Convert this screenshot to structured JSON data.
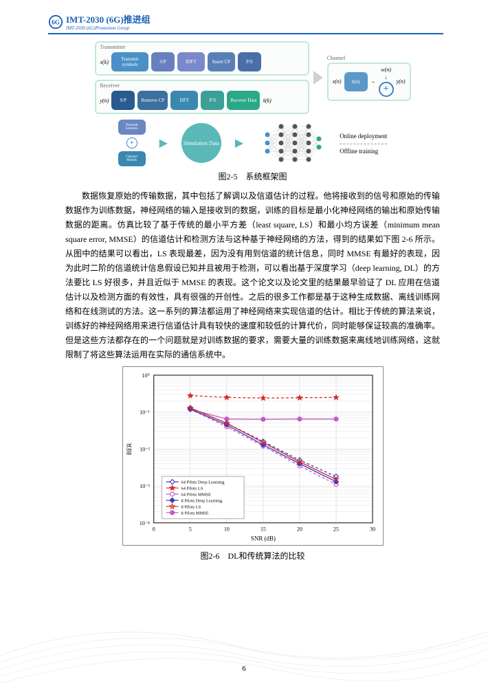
{
  "header": {
    "title_cn": "IMT-2030 (6G)推进组",
    "title_en": "IMT-2030 (6G)Promotion Group"
  },
  "diagram": {
    "transmitter_label": "Transmitter",
    "receiver_label": "Receiver",
    "channel_label": "Channel",
    "xk_in": "x(k)",
    "xn_out": "x(n)",
    "yn_in": "y(n)",
    "yn_out": "y(n)",
    "wn": "w(n)",
    "xk_hat": "x̂(k)",
    "tx_blocks": [
      {
        "label": "Transmit symbols",
        "color": "#4a90c7",
        "w": 54
      },
      {
        "label": "S/P",
        "color": "#6a7fc0",
        "w": 34
      },
      {
        "label": "IDFT",
        "color": "#7a88cc",
        "w": 40
      },
      {
        "label": "Insert CP",
        "color": "#5a7fb8",
        "w": 40
      },
      {
        "label": "P/S",
        "color": "#4a6fa8",
        "w": 34
      }
    ],
    "rx_blocks": [
      {
        "label": "S/P",
        "color": "#2a5a8f",
        "w": 34
      },
      {
        "label": "Remove CP",
        "color": "#3a6fa0",
        "w": 44
      },
      {
        "label": "DFT",
        "color": "#3a88b0",
        "w": 40
      },
      {
        "label": "P/S",
        "color": "#3aa098",
        "w": 34
      },
      {
        "label": "Recover Data",
        "color": "#2aa888",
        "w": 48
      }
    ],
    "channel_block": {
      "label": "h(n)",
      "color": "#5a98c8"
    },
    "sim_label": "Simulation Data",
    "small_blk1": "Transmit Symbols",
    "small_blk2": "Channel Models",
    "online_label": "Online deployment",
    "offline_label": "Offline training"
  },
  "caption1": "图2-5　系统框架图",
  "body_text": "数据恢复原始的传输数据，其中包括了解调以及信道估计的过程。他将接收到的信号和原始的传输数据作为训练数据，神经网络的输入是接收到的数据，训练的目标是最小化神经网络的输出和原始传输数据的距离。仿真比较了基于传统的最小平方差（least square, LS）和最小均方误差（minimum mean square error, MMSE）的信道估计和检测方法与这种基于神经网络的方法，得到的结果如下图 2-6 所示。从图中的结果可以看出，LS 表现最差，因为没有用到信道的统计信息，同时 MMSE 有最好的表现，因为此时二阶的信道统计信息假设已知并且被用于检测，可以看出基于深度学习（deep learning, DL）的方法要比 LS 好很多，并且近似于 MMSE 的表现。这个论文以及论文里的结果最早验证了 DL 应用在信道估计以及检测方面的有效性，具有很强的开创性。之后的很多工作都是基于这种生成数据、离线训练网络和在线测试的方法。这一系列的算法都运用了神经网络来实现信道的估计。相比于传统的算法来说，训练好的神经网络用来进行信道估计具有较快的速度和较低的计算代价，同时能够保证较高的准确率。但是这些方法都存在的一个问题就是对训练数据的要求，需要大量的训练数据来离线地训练网络，这就限制了将这些算法运用在实际的通信系统中。",
  "chart": {
    "type": "line-log",
    "xlabel": "SNR (dB)",
    "ylabel": "BER",
    "xlim": [
      0,
      30
    ],
    "xticks": [
      0,
      5,
      10,
      15,
      20,
      25,
      30
    ],
    "ylim_exp": [
      -4,
      0
    ],
    "yticks_exp": [
      0,
      -1,
      -2,
      -3,
      -4
    ],
    "grid_color": "#cccccc",
    "legend": [
      {
        "label": "64 Pilots Deep Learning",
        "color": "#3a3abf",
        "marker": "diamond",
        "fill": false
      },
      {
        "label": "64 Pilots LS",
        "color": "#d62728",
        "marker": "star",
        "fill": true
      },
      {
        "label": "64 Pilots MMSE",
        "color": "#c858c8",
        "marker": "circle",
        "fill": false
      },
      {
        "label": "8 Pilots Deep Learning",
        "color": "#3a3abf",
        "marker": "diamond",
        "fill": true
      },
      {
        "label": "8 Pilots LS",
        "color": "#d62728",
        "marker": "star-open",
        "fill": false
      },
      {
        "label": "8 Pilots MMSE",
        "color": "#c858c8",
        "marker": "circle",
        "fill": true
      }
    ],
    "series": [
      {
        "color": "#d62728",
        "marker": "star",
        "fill": true,
        "dash": "4,3",
        "points": [
          [
            5,
            0.28
          ],
          [
            10,
            0.25
          ],
          [
            15,
            0.24
          ],
          [
            20,
            0.245
          ],
          [
            25,
            0.25
          ]
        ]
      },
      {
        "color": "#c858c8",
        "marker": "circle",
        "fill": true,
        "dash": "0",
        "points": [
          [
            5,
            0.12
          ],
          [
            10,
            0.065
          ],
          [
            15,
            0.064
          ],
          [
            20,
            0.065
          ],
          [
            25,
            0.065
          ]
        ]
      },
      {
        "color": "#c858c8",
        "marker": "circle",
        "fill": false,
        "dash": "4,3",
        "points": [
          [
            5,
            0.12
          ],
          [
            10,
            0.04
          ],
          [
            15,
            0.012
          ],
          [
            20,
            0.0035
          ],
          [
            25,
            0.0011
          ]
        ]
      },
      {
        "color": "#3a3abf",
        "marker": "diamond",
        "fill": false,
        "dash": "4,3",
        "points": [
          [
            5,
            0.13
          ],
          [
            10,
            0.05
          ],
          [
            15,
            0.016
          ],
          [
            20,
            0.005
          ],
          [
            25,
            0.0018
          ]
        ]
      },
      {
        "color": "#3a3abf",
        "marker": "diamond",
        "fill": true,
        "dash": "0",
        "points": [
          [
            5,
            0.12
          ],
          [
            10,
            0.045
          ],
          [
            15,
            0.013
          ],
          [
            20,
            0.004
          ],
          [
            25,
            0.0013
          ]
        ]
      },
      {
        "color": "#d62728",
        "marker": "star-open",
        "fill": false,
        "dash": "0",
        "points": [
          [
            5,
            0.13
          ],
          [
            10,
            0.05
          ],
          [
            15,
            0.015
          ],
          [
            20,
            0.0045
          ],
          [
            25,
            0.0015
          ]
        ]
      }
    ]
  },
  "caption2": "图2-6　DL和传统算法的比较",
  "page_num": "6"
}
